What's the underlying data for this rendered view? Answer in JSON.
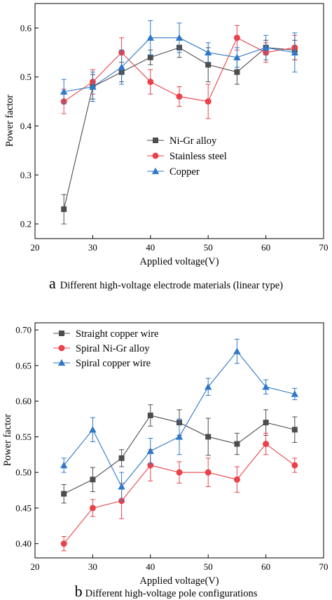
{
  "chart_data": [
    {
      "type": "line",
      "panel_letter": "a",
      "caption": "Different high-voltage electrode materials (linear type)",
      "xlabel": "Applied voltage(V)",
      "ylabel": "Power factor",
      "xlim": [
        20,
        70
      ],
      "ylim": [
        0.17,
        0.65
      ],
      "xticks": [
        20,
        30,
        40,
        50,
        60,
        70
      ],
      "yticks": [
        0.2,
        0.3,
        0.4,
        0.5,
        0.6
      ],
      "ytick_labels": [
        "0.2",
        "0.3",
        "0.4",
        "0.5",
        "0.6"
      ],
      "grid": false,
      "legend_position": "center-right",
      "x": [
        25,
        30,
        35,
        40,
        45,
        50,
        55,
        60,
        65
      ],
      "series": [
        {
          "name": "Ni-Gr alloy",
          "color": "#4d4d4d",
          "marker": "square",
          "values": [
            0.23,
            0.48,
            0.51,
            0.54,
            0.56,
            0.525,
            0.51,
            0.56,
            0.555
          ],
          "errors": [
            0.03,
            0.025,
            0.02,
            0.015,
            0.02,
            0.035,
            0.025,
            0.015,
            0.02
          ]
        },
        {
          "name": "Stainless steel",
          "color": "#e8434a",
          "marker": "circle",
          "values": [
            0.45,
            0.49,
            0.55,
            0.49,
            0.46,
            0.45,
            0.58,
            0.55,
            0.56
          ],
          "errors": [
            0.025,
            0.025,
            0.03,
            0.025,
            0.02,
            0.035,
            0.025,
            0.02,
            0.025
          ]
        },
        {
          "name": "Copper",
          "color": "#2e78c7",
          "marker": "triangle",
          "values": [
            0.47,
            0.48,
            0.52,
            0.58,
            0.58,
            0.55,
            0.54,
            0.56,
            0.55
          ],
          "errors": [
            0.025,
            0.03,
            0.035,
            0.035,
            0.03,
            0.02,
            0.02,
            0.025,
            0.04
          ]
        }
      ]
    },
    {
      "type": "line",
      "panel_letter": "b",
      "caption": "Different high-voltage pole configurations",
      "xlabel": "Applied voltage(V)",
      "ylabel": "Power factor",
      "xlim": [
        20,
        70
      ],
      "ylim": [
        0.38,
        0.71
      ],
      "xticks": [
        20,
        30,
        40,
        50,
        60,
        70
      ],
      "yticks": [
        0.4,
        0.45,
        0.5,
        0.55,
        0.6,
        0.65,
        0.7
      ],
      "ytick_labels": [
        "0.40",
        "0.45",
        "0.50",
        "0.55",
        "0.60",
        "0.65",
        "0.70"
      ],
      "grid": false,
      "legend_position": "top-left",
      "x": [
        25,
        30,
        35,
        40,
        45,
        50,
        55,
        60,
        65
      ],
      "series": [
        {
          "name": "Straight copper wire",
          "color": "#4d4d4d",
          "marker": "square",
          "values": [
            0.47,
            0.49,
            0.52,
            0.58,
            0.57,
            0.55,
            0.54,
            0.57,
            0.56
          ],
          "errors": [
            0.013,
            0.017,
            0.012,
            0.015,
            0.018,
            0.026,
            0.015,
            0.018,
            0.018
          ]
        },
        {
          "name": "Spiral Ni-Gr alloy",
          "color": "#e8434a",
          "marker": "circle",
          "values": [
            0.4,
            0.45,
            0.46,
            0.51,
            0.5,
            0.5,
            0.49,
            0.54,
            0.51
          ],
          "errors": [
            0.01,
            0.012,
            0.025,
            0.022,
            0.015,
            0.02,
            0.018,
            0.015,
            0.01
          ]
        },
        {
          "name": "Spiral copper wire",
          "color": "#2e78c7",
          "marker": "triangle",
          "values": [
            0.51,
            0.56,
            0.48,
            0.53,
            0.55,
            0.62,
            0.67,
            0.62,
            0.61
          ],
          "errors": [
            0.01,
            0.017,
            0.02,
            0.018,
            0.025,
            0.012,
            0.017,
            0.01,
            0.008
          ]
        }
      ]
    }
  ]
}
